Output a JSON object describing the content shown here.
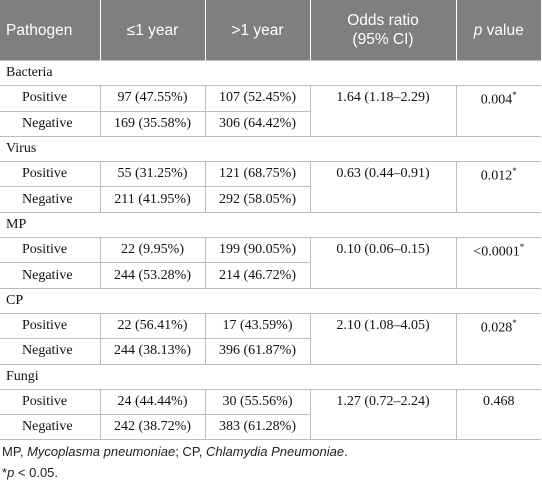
{
  "header": {
    "pathogen": "Pathogen",
    "le1": "≤1 year",
    "gt1": ">1 year",
    "odds_ratio": [
      "Odds ratio",
      "(95% CI)"
    ],
    "p_value": {
      "italic": "p",
      "text": " value"
    }
  },
  "groups": [
    {
      "name": "Bacteria",
      "rows": [
        {
          "label": "Positive",
          "le1": "97 (47.55%)",
          "gt1": "107 (52.45%)"
        },
        {
          "label": "Negative",
          "le1": "169 (35.58%)",
          "gt1": "306 (64.42%)"
        }
      ],
      "odds_ratio": "1.64 (1.18–2.29)",
      "p_value": "0.004",
      "p_mark": "*"
    },
    {
      "name": "Virus",
      "rows": [
        {
          "label": "Positive",
          "le1": "55 (31.25%)",
          "gt1": "121 (68.75%)"
        },
        {
          "label": "Negative",
          "le1": "211 (41.95%)",
          "gt1": "292 (58.05%)"
        }
      ],
      "odds_ratio": "0.63 (0.44–0.91)",
      "p_value": "0.012",
      "p_mark": "*"
    },
    {
      "name": "MP",
      "rows": [
        {
          "label": "Positive",
          "le1": "22 (9.95%)",
          "gt1": "199 (90.05%)"
        },
        {
          "label": "Negative",
          "le1": "244 (53.28%)",
          "gt1": "214 (46.72%)"
        }
      ],
      "odds_ratio": "0.10 (0.06–0.15)",
      "p_value": "<0.0001",
      "p_mark": "*"
    },
    {
      "name": "CP",
      "rows": [
        {
          "label": "Positive",
          "le1": "22 (56.41%)",
          "gt1": "17 (43.59%)"
        },
        {
          "label": "Negative",
          "le1": "244 (38.13%)",
          "gt1": "396 (61.87%)"
        }
      ],
      "odds_ratio": "2.10 (1.08–4.05)",
      "p_value": "0.028",
      "p_mark": "*"
    },
    {
      "name": "Fungi",
      "rows": [
        {
          "label": "Positive",
          "le1": "24 (44.44%)",
          "gt1": "30 (55.56%)"
        },
        {
          "label": "Negative",
          "le1": "242 (38.72%)",
          "gt1": "383 (61.28%)"
        }
      ],
      "odds_ratio": "1.27 (0.72–2.24)",
      "p_value": "0.468"
    }
  ],
  "footnotes": [
    [
      "MP, ",
      "Mycoplasma pneumoniae",
      "; CP, ",
      "Chlamydia Pneumoniae",
      "."
    ],
    [
      "*",
      "p",
      " < 0.05."
    ]
  ]
}
